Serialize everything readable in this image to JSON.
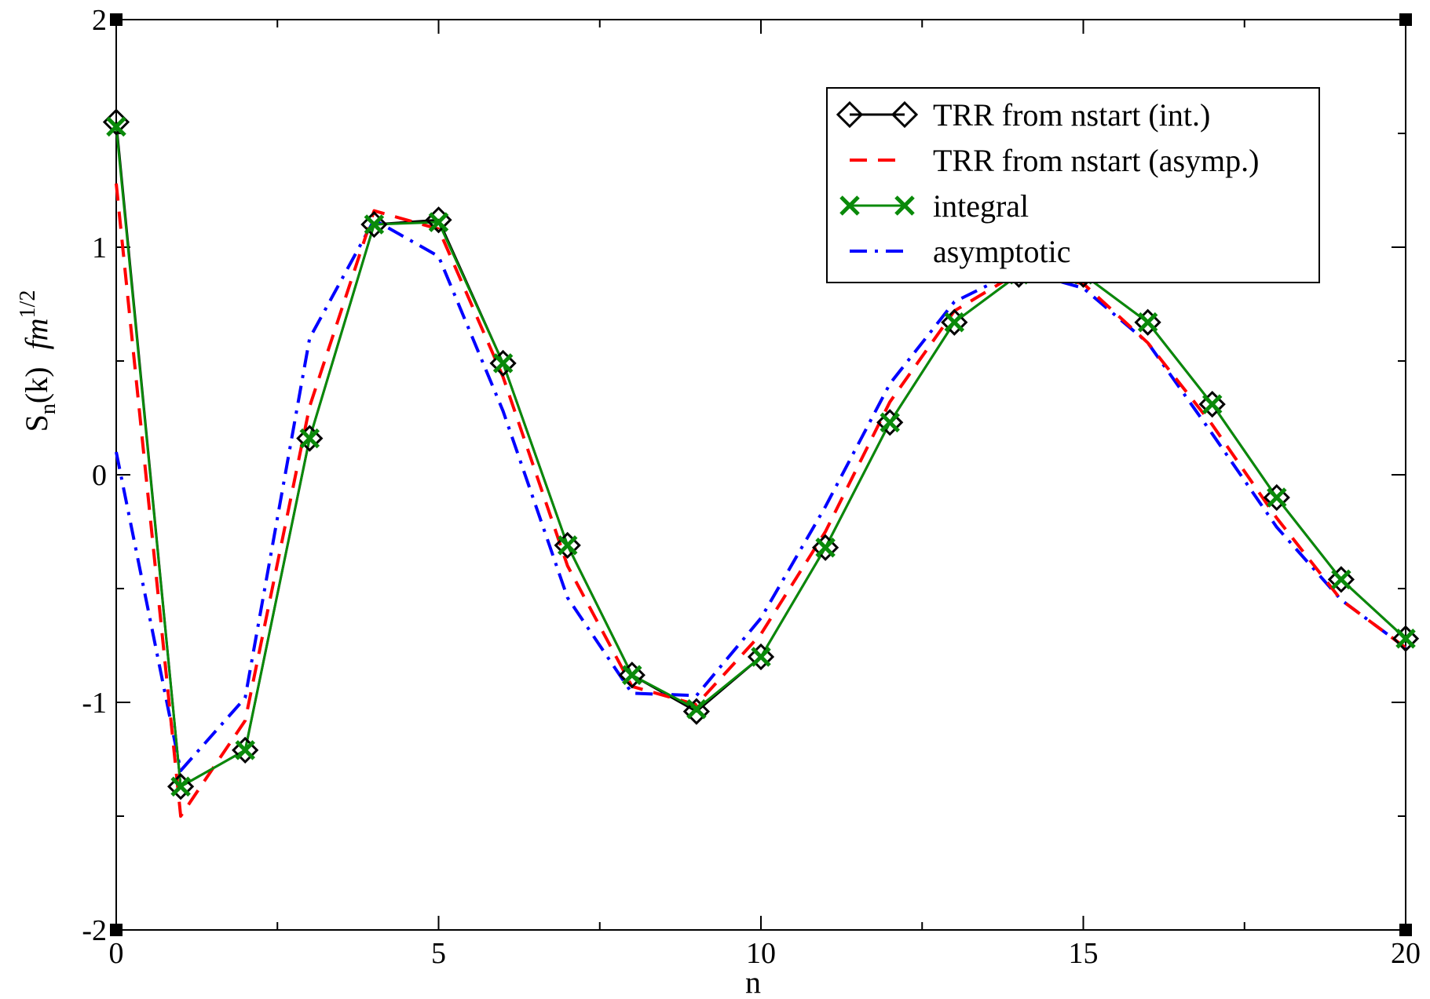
{
  "chart_data": {
    "type": "line",
    "title": "",
    "xlabel": "n",
    "ylabel": {
      "main": "S",
      "sub": "n",
      "paren": "(k)",
      "unit": "fm",
      "sup": "1/2"
    },
    "xlim": [
      0,
      20
    ],
    "ylim": [
      -2,
      2
    ],
    "x_ticks": [
      0,
      5,
      10,
      15,
      20
    ],
    "x_tick_labels": [
      "0",
      "5",
      "10",
      "15",
      "20"
    ],
    "y_ticks": [
      -2,
      -1,
      0,
      1,
      2
    ],
    "y_tick_labels": [
      "-2",
      "-1",
      "0",
      "1",
      "2"
    ],
    "grid": false,
    "legend_position": "top-right",
    "series": [
      {
        "name": "TRR from nstart (int.)",
        "color": "#000000",
        "style": "solid-diamond",
        "x": [
          0,
          1,
          2,
          3,
          4,
          5,
          6,
          7,
          8,
          9,
          10,
          11,
          12,
          13,
          14,
          15,
          16,
          17,
          18,
          19,
          20
        ],
        "y": [
          1.55,
          -1.37,
          -1.21,
          0.16,
          1.1,
          1.12,
          0.49,
          -0.31,
          -0.88,
          -1.04,
          -0.8,
          -0.32,
          0.23,
          0.67,
          0.88,
          0.88,
          0.67,
          0.31,
          -0.1,
          -0.46,
          -0.72
        ]
      },
      {
        "name": "TRR from nstart (asymp.)",
        "color": "#ff0000",
        "style": "dashed",
        "x": [
          0,
          1,
          2,
          3,
          4,
          5,
          6,
          7,
          8,
          9,
          10,
          11,
          12,
          13,
          14,
          15,
          16,
          17,
          18,
          19,
          20
        ],
        "y": [
          1.28,
          -1.5,
          -1.08,
          0.3,
          1.16,
          1.08,
          0.43,
          -0.4,
          -0.93,
          -1.01,
          -0.7,
          -0.25,
          0.32,
          0.72,
          0.89,
          0.84,
          0.58,
          0.22,
          -0.19,
          -0.55,
          -0.76
        ]
      },
      {
        "name": "integral",
        "color": "#0a8a0a",
        "style": "solid-x",
        "x": [
          0,
          1,
          2,
          3,
          4,
          5,
          6,
          7,
          8,
          9,
          10,
          11,
          12,
          13,
          14,
          15,
          16,
          17,
          18,
          19,
          20
        ],
        "y": [
          1.53,
          -1.37,
          -1.21,
          0.16,
          1.1,
          1.11,
          0.49,
          -0.31,
          -0.88,
          -1.03,
          -0.8,
          -0.32,
          0.23,
          0.67,
          0.88,
          0.88,
          0.67,
          0.31,
          -0.1,
          -0.46,
          -0.72
        ]
      },
      {
        "name": "asymptotic",
        "color": "#0000ff",
        "style": "dash-dot",
        "x": [
          0,
          1,
          2,
          3,
          4,
          5,
          6,
          7,
          8,
          9,
          10,
          11,
          12,
          13,
          14,
          15,
          16,
          17,
          18,
          19,
          20
        ],
        "y": [
          0.1,
          -1.3,
          -0.98,
          0.6,
          1.12,
          0.96,
          0.28,
          -0.54,
          -0.96,
          -0.97,
          -0.63,
          -0.14,
          0.4,
          0.76,
          0.9,
          0.82,
          0.58,
          0.18,
          -0.23,
          -0.55,
          -0.76
        ]
      }
    ]
  }
}
